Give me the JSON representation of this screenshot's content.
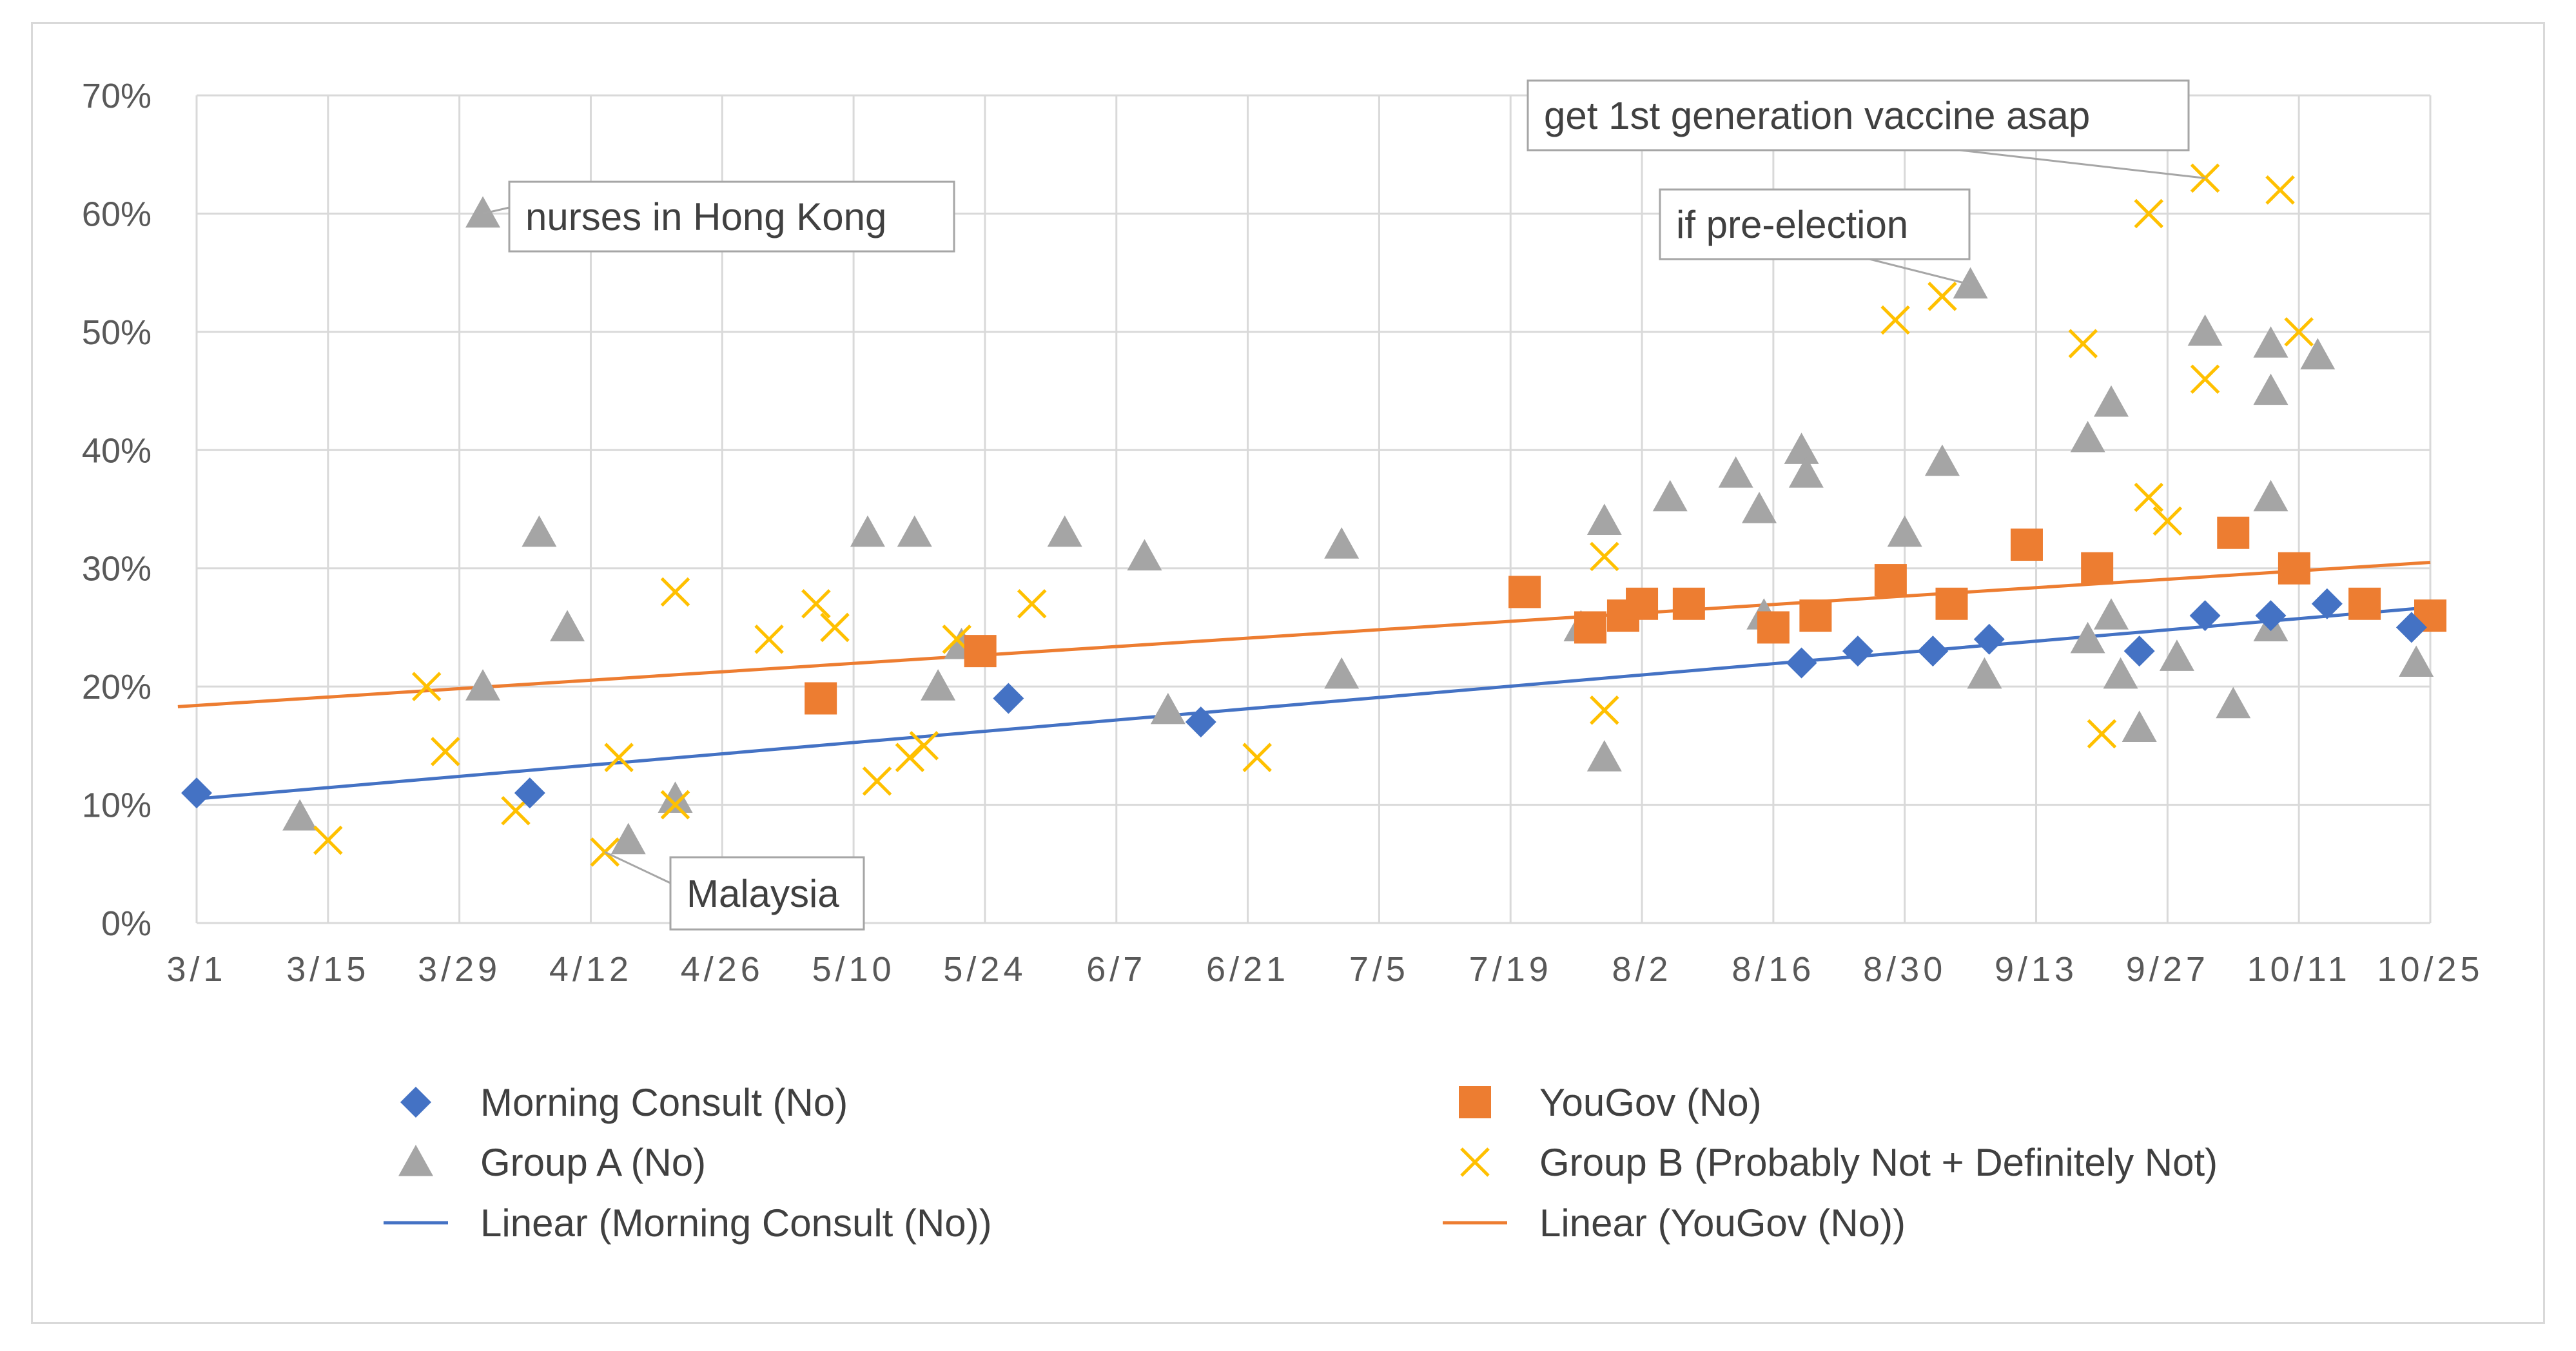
{
  "chart_data": {
    "type": "scatter",
    "title": "",
    "xlabel": "",
    "ylabel": "",
    "x_ticks": [
      "3/1",
      "3/15",
      "3/29",
      "4/12",
      "4/26",
      "5/10",
      "5/24",
      "6/7",
      "6/21",
      "7/5",
      "7/19",
      "8/2",
      "8/16",
      "8/30",
      "9/13",
      "9/27",
      "10/11",
      "10/25"
    ],
    "x_range_days": [
      0,
      238
    ],
    "y_ticks": [
      "0%",
      "10%",
      "20%",
      "30%",
      "40%",
      "50%",
      "60%",
      "70%"
    ],
    "ylim": [
      0,
      70
    ],
    "grid": true,
    "colors": {
      "morning_consult": "#4472c4",
      "yougov": "#ed7d31",
      "group_a": "#a5a5a5",
      "group_b": "#ffc000",
      "grid": "#d9d9d9",
      "text": "#595959"
    },
    "series": [
      {
        "name": "Morning Consult (No)",
        "marker": "diamond",
        "points": [
          [
            0,
            11
          ],
          [
            35.5,
            11
          ],
          [
            86.5,
            19
          ],
          [
            107,
            17
          ],
          [
            171,
            22
          ],
          [
            177,
            23
          ],
          [
            185,
            23
          ],
          [
            191,
            24
          ],
          [
            207,
            23
          ],
          [
            214,
            26
          ],
          [
            221,
            26
          ],
          [
            227,
            27
          ],
          [
            236,
            25
          ]
        ]
      },
      {
        "name": "YouGov (No)",
        "marker": "square",
        "points": [
          [
            66.5,
            19
          ],
          [
            83.5,
            23
          ],
          [
            141.5,
            28
          ],
          [
            148.5,
            25
          ],
          [
            152,
            26
          ],
          [
            154,
            27
          ],
          [
            159,
            27
          ],
          [
            168,
            25
          ],
          [
            172.5,
            26
          ],
          [
            180.5,
            29
          ],
          [
            187,
            27
          ],
          [
            195,
            32
          ],
          [
            202.5,
            30
          ],
          [
            217,
            33
          ],
          [
            223.5,
            30
          ],
          [
            231,
            27
          ],
          [
            238,
            26
          ]
        ]
      },
      {
        "name": "Group A (No)",
        "marker": "triangle",
        "points": [
          [
            11,
            9
          ],
          [
            30.5,
            60
          ],
          [
            30.5,
            20
          ],
          [
            36.5,
            33
          ],
          [
            39.5,
            25
          ],
          [
            46,
            7
          ],
          [
            51,
            10.5
          ],
          [
            71.5,
            33
          ],
          [
            76.5,
            33
          ],
          [
            79,
            20
          ],
          [
            81.5,
            23.5
          ],
          [
            92.5,
            33
          ],
          [
            101,
            31
          ],
          [
            103.5,
            18
          ],
          [
            122,
            32
          ],
          [
            122,
            21
          ],
          [
            147.5,
            25
          ],
          [
            150,
            34
          ],
          [
            150,
            14
          ],
          [
            157,
            36
          ],
          [
            164,
            38
          ],
          [
            166.5,
            35
          ],
          [
            167,
            26
          ],
          [
            171,
            40
          ],
          [
            171.5,
            38
          ],
          [
            182,
            33
          ],
          [
            186,
            39
          ],
          [
            189,
            54
          ],
          [
            190.5,
            21
          ],
          [
            201.5,
            41
          ],
          [
            201.5,
            24
          ],
          [
            204,
            44
          ],
          [
            204,
            26
          ],
          [
            205,
            21
          ],
          [
            207,
            16.5
          ],
          [
            211,
            22.5
          ],
          [
            214,
            50
          ],
          [
            217,
            18.5
          ],
          [
            221,
            49
          ],
          [
            221,
            45
          ],
          [
            221,
            36
          ],
          [
            221,
            25
          ],
          [
            226,
            48
          ],
          [
            236.5,
            22
          ]
        ]
      },
      {
        "name": "Group B (Probably Not + Definitely Not)",
        "marker": "x",
        "points": [
          [
            14,
            7
          ],
          [
            24.5,
            20
          ],
          [
            26.5,
            14.5
          ],
          [
            34,
            9.5
          ],
          [
            43.5,
            6
          ],
          [
            45,
            14
          ],
          [
            51,
            28
          ],
          [
            51,
            10
          ],
          [
            61,
            24
          ],
          [
            66,
            27
          ],
          [
            68,
            25
          ],
          [
            72.5,
            12
          ],
          [
            76,
            14
          ],
          [
            77.5,
            15
          ],
          [
            81,
            24
          ],
          [
            89,
            27
          ],
          [
            113,
            14
          ],
          [
            150,
            31
          ],
          [
            150,
            18
          ],
          [
            181,
            51
          ],
          [
            186,
            53
          ],
          [
            201,
            49
          ],
          [
            203,
            16
          ],
          [
            208,
            36
          ],
          [
            208,
            60
          ],
          [
            210,
            34
          ],
          [
            214,
            46
          ],
          [
            214,
            63
          ],
          [
            222,
            62
          ],
          [
            224,
            50
          ]
        ]
      },
      {
        "name": "Linear (Morning Consult (No))",
        "type": "trendline",
        "from": [
          0,
          10.5
        ],
        "to": [
          238,
          26.7
        ]
      },
      {
        "name": "Linear (YouGov (No))",
        "type": "trendline",
        "from": [
          -2,
          18.3
        ],
        "to": [
          238,
          30.5
        ]
      }
    ],
    "annotations": [
      {
        "text": "nurses in Hong Kong",
        "target": [
          30.5,
          60
        ]
      },
      {
        "text": "Malaysia",
        "target": [
          43.5,
          6
        ]
      },
      {
        "text": "if pre-election",
        "target": [
          189,
          54
        ]
      },
      {
        "text": "get 1st generation vaccine asap",
        "target": [
          214,
          63
        ]
      }
    ],
    "legend": {
      "placement": "bottom",
      "entries": [
        "Morning Consult (No)",
        "YouGov (No)",
        "Group A (No)",
        "Group B (Probably Not + Definitely Not)",
        "Linear (Morning Consult (No))",
        "Linear (YouGov (No))"
      ]
    }
  }
}
